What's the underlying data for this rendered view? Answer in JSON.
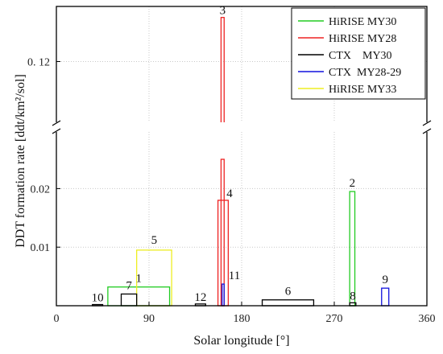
{
  "chart_data": {
    "type": "bar",
    "title": "",
    "xlabel": "Solar longitude [°]",
    "ylabel": "DDT formation rate [ddt/km²/sol]",
    "xlim": [
      0,
      360
    ],
    "x_ticks": [
      0,
      90,
      180,
      270,
      360
    ],
    "x_tick_labels": [
      "0",
      "90",
      "180",
      "270",
      "360"
    ],
    "y_axis_break": true,
    "y_lower_range": [
      0,
      0.025
    ],
    "y_upper_range": [
      0.105,
      0.135
    ],
    "y_ticks": [
      0.01,
      0.02,
      0.12
    ],
    "y_tick_labels": [
      "0.01",
      "0.02",
      "0. 12"
    ],
    "grid": true,
    "legend_position": "top-right",
    "series": [
      {
        "name": "HiRISE MY30",
        "color": "#22cc22"
      },
      {
        "name": "HiRISE MY28",
        "color": "#ee2222"
      },
      {
        "name": "CTX    MY30",
        "color": "#000000"
      },
      {
        "name": "CTX  MY28-29",
        "color": "#1111dd"
      },
      {
        "name": "HiRISE MY33",
        "color": "#eeee22"
      }
    ],
    "bars": [
      {
        "label": "1",
        "series": "HiRISE MY30",
        "x_start": 50,
        "x_end": 110,
        "value": 0.0032
      },
      {
        "label": "2",
        "series": "HiRISE MY30",
        "x_start": 285,
        "x_end": 290,
        "value": 0.0195
      },
      {
        "label": "3",
        "series": "HiRISE MY28",
        "x_start": 160,
        "x_end": 163,
        "value": 0.132
      },
      {
        "label": "4",
        "series": "HiRISE MY28",
        "x_start": 157,
        "x_end": 167,
        "value": 0.018
      },
      {
        "label": "5",
        "series": "HiRISE MY33",
        "x_start": 78,
        "x_end": 112,
        "value": 0.0095
      },
      {
        "label": "6",
        "series": "CTX    MY30",
        "x_start": 200,
        "x_end": 250,
        "value": 0.001
      },
      {
        "label": "7",
        "series": "CTX    MY30",
        "x_start": 63,
        "x_end": 78,
        "value": 0.002
      },
      {
        "label": "8",
        "series": "CTX    MY30",
        "x_start": 285,
        "x_end": 291,
        "value": 0.0005
      },
      {
        "label": "9",
        "series": "CTX  MY28-29",
        "x_start": 316,
        "x_end": 323,
        "value": 0.003
      },
      {
        "label": "10",
        "series": "CTX    MY30",
        "x_start": 35,
        "x_end": 45,
        "value": 0.0002
      },
      {
        "label": "11",
        "series": "CTX  MY28-29",
        "x_start": 161,
        "x_end": 163,
        "value": 0.0037
      },
      {
        "label": "12",
        "series": "CTX    MY30",
        "x_start": 135,
        "x_end": 145,
        "value": 0.0003
      }
    ]
  }
}
